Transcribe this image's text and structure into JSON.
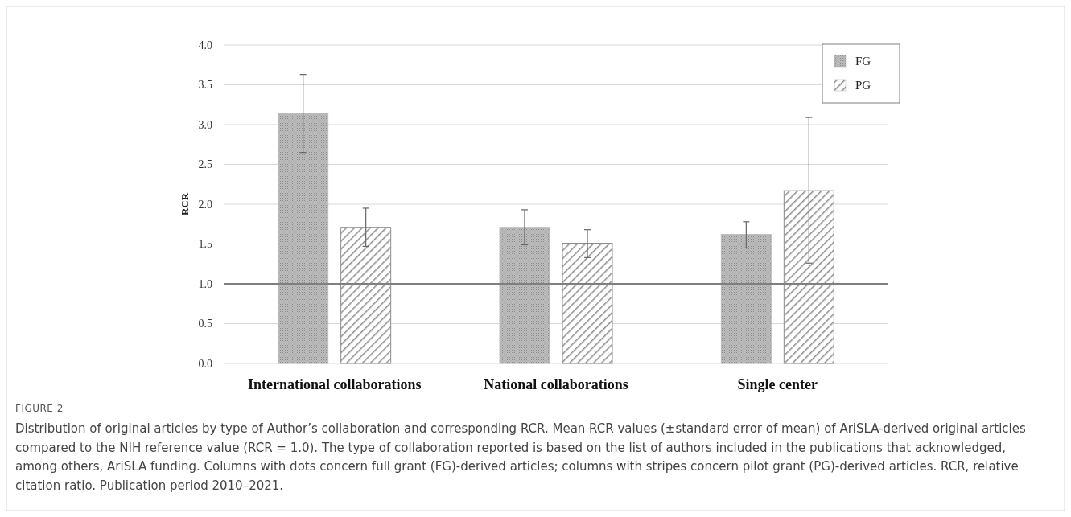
{
  "chart_data": {
    "type": "bar",
    "ylabel": "RCR",
    "categories": [
      "International collaborations",
      "National collaborations",
      "Single center"
    ],
    "series": [
      {
        "name": "FG",
        "color": "#bdbdbd",
        "values": [
          3.14,
          1.71,
          1.62
        ],
        "errors": [
          [
            2.65,
            3.63
          ],
          [
            1.49,
            1.93
          ],
          [
            1.45,
            1.78
          ]
        ]
      },
      {
        "name": "PG",
        "color": "#8c8c8c",
        "values": [
          1.71,
          1.51,
          2.17
        ],
        "errors": [
          [
            1.47,
            1.95
          ],
          [
            1.33,
            1.68
          ],
          [
            1.26,
            3.09
          ]
        ]
      }
    ],
    "ylim": [
      0,
      4
    ],
    "yticks": [
      {
        "value": 0,
        "label": "0.0"
      },
      {
        "value": 0.5,
        "label": "0.5"
      },
      {
        "value": 1,
        "label": "1.0"
      },
      {
        "value": 1.5,
        "label": "1.5"
      },
      {
        "value": 2,
        "label": "2.0"
      },
      {
        "value": 2.5,
        "label": "2.5"
      },
      {
        "value": 3,
        "label": "3.0"
      },
      {
        "value": 3.5,
        "label": "3.5"
      },
      {
        "value": 4,
        "label": "4.0"
      }
    ],
    "grid": "y",
    "legend": "top right",
    "ref_lines": [
      {
        "axis": "y",
        "value": 1,
        "color": "#7f7f7f"
      }
    ],
    "annotations": [
      "FIGURE 2",
      "Distribution of original articles by type of Author’s collaboration and corresponding RCR. Mean RCR values (±standard error of mean) of AriSLA-derived original articles compared to the NIH reference value (RCR = 1.0). The type of collaboration reported is based on the list of authors included in the publications that acknowledged, among others, AriSLA funding. Columns with dots concern full grant (FG)-derived articles; columns with stripes concern pilot grant (PG)-derived articles. RCR, relative citation ratio. Publication period 2010–2021."
    ]
  }
}
